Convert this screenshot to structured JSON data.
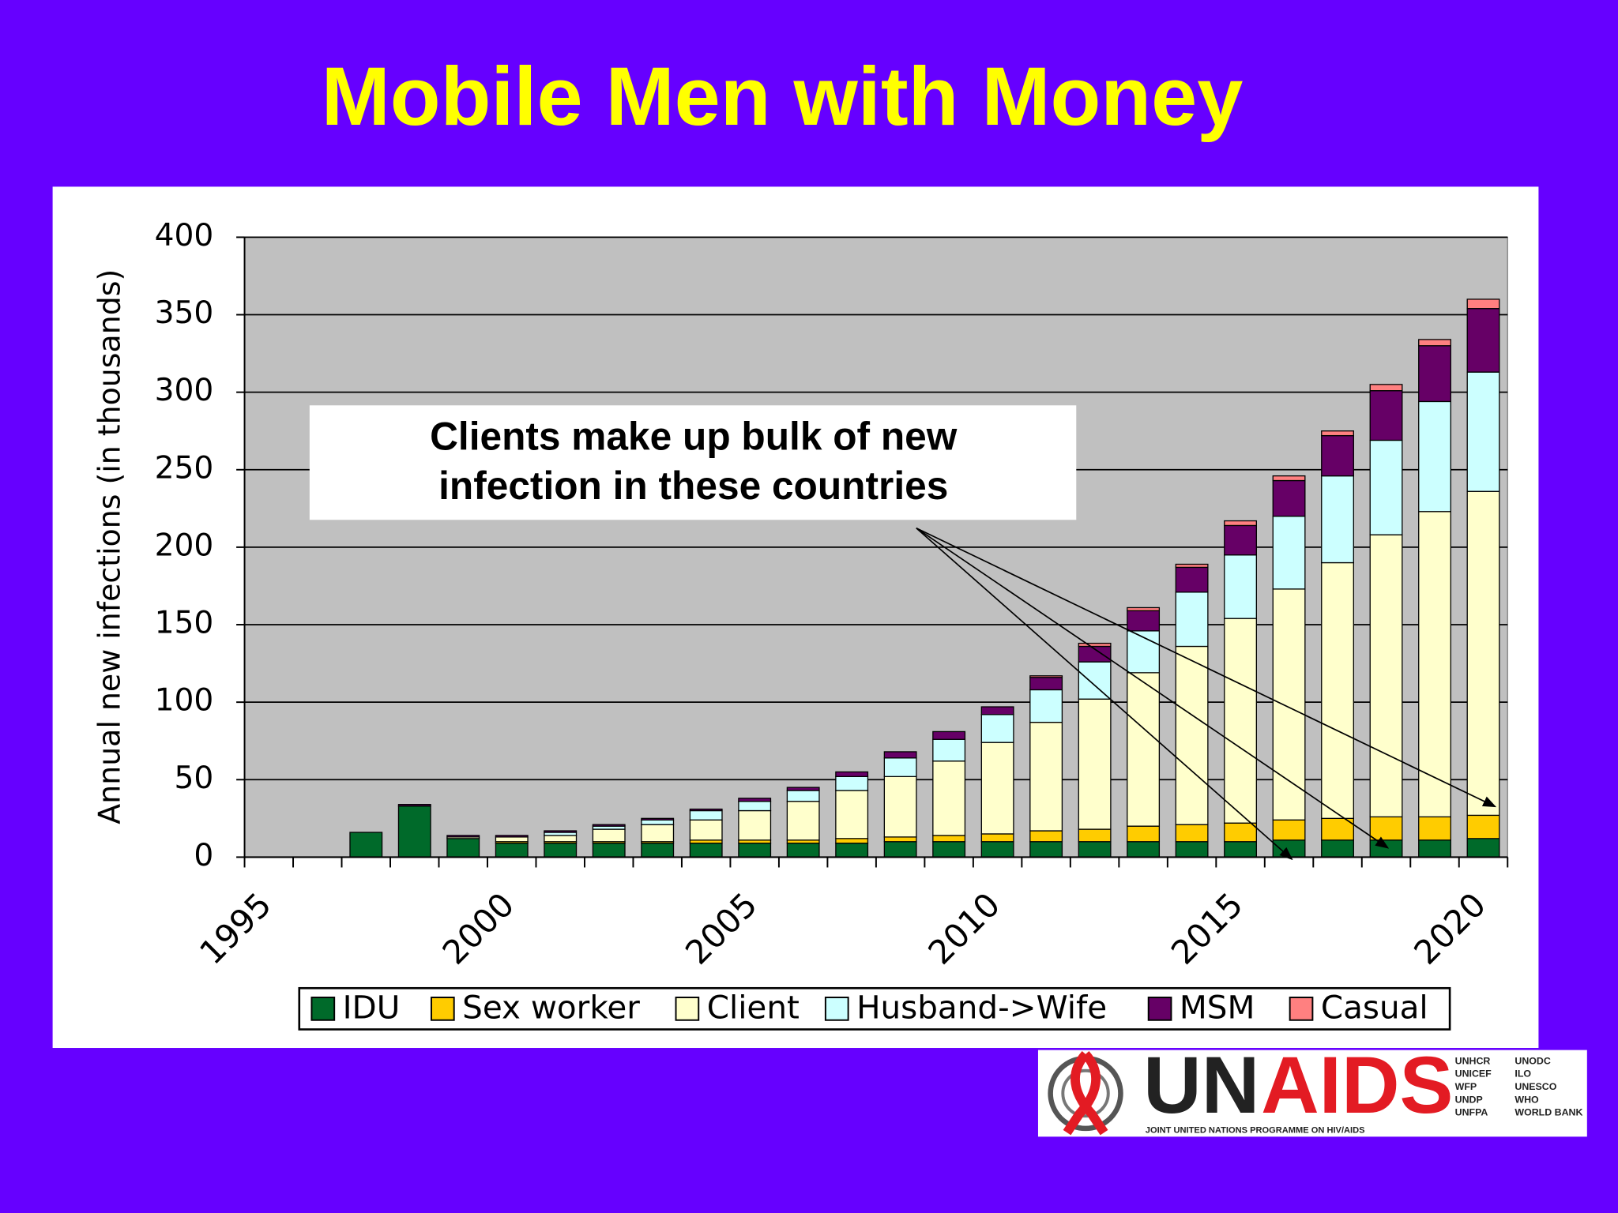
{
  "chart_data": {
    "type": "stacked_bar",
    "title": "Mobile Men with Money",
    "y_label": "Annual new infections (in thousands)",
    "annotation": [
      "Clients make up bulk of new",
      "infection in these countries"
    ],
    "categories": [
      "1995",
      null,
      null,
      null,
      null,
      "2000",
      null,
      null,
      null,
      null,
      "2005",
      null,
      null,
      null,
      null,
      "2010",
      null,
      null,
      null,
      null,
      "2015",
      null,
      null,
      null,
      null,
      "2020"
    ],
    "series": [
      {
        "name": "IDU",
        "color": "#006a2a",
        "values": [
          null,
          null,
          16,
          33,
          12,
          9,
          9,
          9,
          9,
          9,
          9,
          9,
          9,
          10,
          10,
          10,
          10,
          10,
          10,
          10,
          10,
          11,
          11,
          11,
          11,
          12
        ]
      },
      {
        "name": "Sex worker",
        "color": "#ffcc00",
        "values": [
          null,
          null,
          0,
          0,
          0,
          1,
          1,
          1,
          1,
          2,
          2,
          2,
          3,
          3,
          4,
          5,
          7,
          8,
          10,
          11,
          12,
          13,
          14,
          15,
          15,
          15
        ]
      },
      {
        "name": "Client",
        "color": "#ffffcc",
        "values": [
          null,
          null,
          0,
          0,
          1,
          3,
          4,
          8,
          11,
          13,
          19,
          25,
          31,
          39,
          48,
          59,
          70,
          84,
          99,
          115,
          132,
          149,
          165,
          182,
          197,
          209
        ]
      },
      {
        "name": "Husband->Wife",
        "color": "#ccffff",
        "values": [
          null,
          null,
          0,
          0,
          0,
          0,
          2,
          2,
          3,
          6,
          6,
          7,
          9,
          12,
          14,
          18,
          21,
          24,
          27,
          35,
          41,
          47,
          56,
          61,
          71,
          77
        ]
      },
      {
        "name": "MSM",
        "color": "#660066",
        "values": [
          null,
          null,
          0,
          1,
          1,
          1,
          1,
          1,
          1,
          1,
          2,
          2,
          3,
          4,
          5,
          5,
          8,
          10,
          13,
          16,
          19,
          23,
          26,
          32,
          36,
          41
        ]
      },
      {
        "name": "Casual",
        "color": "#ff8080",
        "values": [
          null,
          null,
          0,
          0,
          0,
          0,
          0,
          0,
          0,
          0,
          0,
          0,
          0,
          0,
          0,
          0,
          1,
          2,
          2,
          2,
          3,
          3,
          3,
          4,
          4,
          6
        ]
      }
    ],
    "ylim": [
      0,
      400
    ],
    "yticks": [
      0,
      50,
      100,
      150,
      200,
      250,
      300,
      350,
      400
    ],
    "grid": true
  },
  "logo": {
    "name": [
      "UN",
      "AIDS"
    ],
    "agencies": [
      [
        "UNHCR",
        "UNICEF",
        "WFP",
        "UNDP",
        "UNFPA"
      ],
      [
        "UNODC",
        "ILO",
        "UNESCO",
        "WHO",
        "WORLD BANK"
      ]
    ],
    "tagline": "JOINT UNITED NATIONS PROGRAMME ON HIV/AIDS"
  }
}
